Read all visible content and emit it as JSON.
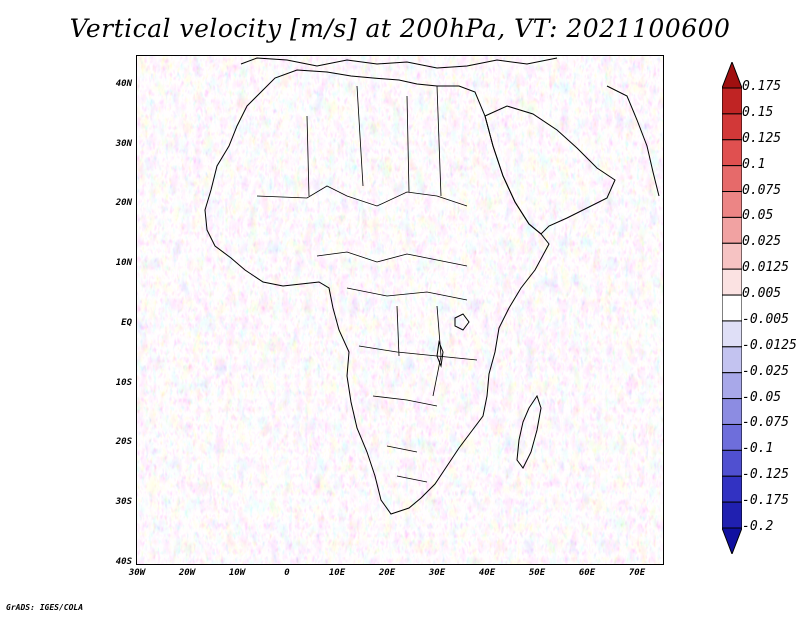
{
  "title": "Vertical velocity [m/s] at 200hPa, VT: 2021100600",
  "footer": "GrADS: IGES/COLA",
  "map": {
    "lat_ticks": [
      "40N",
      "30N",
      "20N",
      "10N",
      "EQ",
      "10S",
      "20S",
      "30S",
      "40S"
    ],
    "lon_ticks": [
      "30W",
      "20W",
      "10W",
      "0",
      "10E",
      "20E",
      "30E",
      "40E",
      "50E",
      "60E",
      "70E"
    ],
    "lat_range": [
      -40,
      45
    ],
    "lon_range": [
      -30,
      75
    ]
  },
  "colorbar": {
    "labels": [
      "0.175",
      "0.15",
      "0.125",
      "0.1",
      "0.075",
      "0.05",
      "0.025",
      "0.0125",
      "0.005",
      "-0.005",
      "-0.0125",
      "-0.025",
      "-0.05",
      "-0.075",
      "-0.1",
      "-0.125",
      "-0.175",
      "-0.2"
    ],
    "colors": [
      "#a01010",
      "#c02424",
      "#d23838",
      "#e05050",
      "#e66a6a",
      "#ec8585",
      "#f1a2a2",
      "#f6c3c3",
      "#fbe2e2",
      "#ffffff",
      "#dfdff7",
      "#c3c3f0",
      "#a8a8e9",
      "#8c8ce2",
      "#6e6edb",
      "#5050d0",
      "#3232c2",
      "#2020b0",
      "#1010a0"
    ]
  }
}
